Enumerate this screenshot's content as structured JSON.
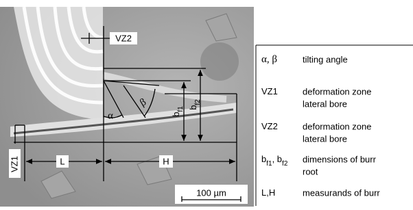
{
  "image_labels": {
    "vz2": "VZ2",
    "alpha": "α",
    "beta": "β",
    "bf1": [
      "b",
      "f1"
    ],
    "bf2": [
      "b",
      "f2"
    ],
    "vz1": "VZ1",
    "l": "L",
    "h": "H",
    "scale_bar": "100 µm"
  },
  "legend": {
    "rows": [
      {
        "term": [
          "α, β"
        ],
        "description": [
          "tilting angle"
        ]
      },
      {
        "term": [
          "VZ1"
        ],
        "description": [
          "deformation zone",
          "lateral bore"
        ]
      },
      {
        "term": [
          "VZ2"
        ],
        "description": [
          "deformation zone",
          "lateral bore"
        ]
      },
      {
        "term": [
          "b",
          "f1",
          ", b",
          "f2"
        ],
        "description": [
          "dimensions of burr",
          "root"
        ]
      },
      {
        "term": [
          "L,H"
        ],
        "description": [
          "measurands of burr"
        ]
      }
    ]
  }
}
